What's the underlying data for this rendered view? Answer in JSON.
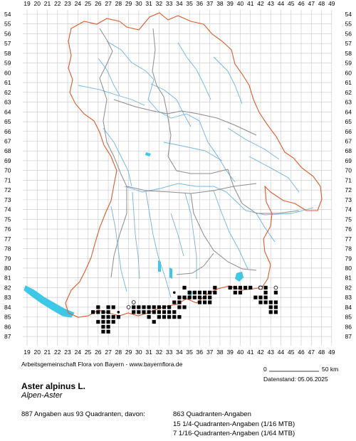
{
  "map": {
    "x_labels": [
      "19",
      "20",
      "21",
      "22",
      "23",
      "24",
      "25",
      "26",
      "27",
      "28",
      "29",
      "30",
      "31",
      "32",
      "33",
      "34",
      "35",
      "36",
      "37",
      "38",
      "39",
      "40",
      "41",
      "42",
      "43",
      "44",
      "45",
      "46",
      "47",
      "48",
      "49"
    ],
    "y_labels": [
      "54",
      "55",
      "56",
      "57",
      "58",
      "59",
      "60",
      "61",
      "62",
      "63",
      "64",
      "65",
      "66",
      "67",
      "68",
      "69",
      "70",
      "71",
      "72",
      "73",
      "74",
      "75",
      "76",
      "77",
      "78",
      "79",
      "80",
      "81",
      "82",
      "83",
      "84",
      "85",
      "86",
      "87"
    ],
    "colors": {
      "border_outer": "#e05a2b",
      "border_inner": "#8c8c8c",
      "rivers": "#6fb4e6",
      "lakes": "#3ec8e8",
      "grid": "#c8c8c8",
      "record": "#000000"
    },
    "records_filled": [
      [
        26,
        84
      ],
      [
        27,
        84
      ],
      [
        25.5,
        84.5
      ],
      [
        26,
        84.5
      ],
      [
        26.5,
        84.5
      ],
      [
        27,
        84.5
      ],
      [
        26.5,
        85
      ],
      [
        27,
        85
      ],
      [
        27.5,
        85
      ],
      [
        26,
        85.5
      ],
      [
        26.5,
        85.5
      ],
      [
        27,
        85.5
      ],
      [
        27.5,
        85.5
      ],
      [
        26.5,
        86
      ],
      [
        27,
        86
      ],
      [
        26.5,
        86.5
      ],
      [
        27,
        86.5
      ],
      [
        27.5,
        84
      ],
      [
        28,
        85
      ],
      [
        29.5,
        84
      ],
      [
        30,
        84
      ],
      [
        30.5,
        84
      ],
      [
        31,
        84
      ],
      [
        31.5,
        84
      ],
      [
        32,
        84
      ],
      [
        32.5,
        84
      ],
      [
        33,
        84
      ],
      [
        29.5,
        84.5
      ],
      [
        30,
        84.5
      ],
      [
        30.5,
        84.5
      ],
      [
        31,
        84.5
      ],
      [
        31.5,
        84.5
      ],
      [
        32,
        84.5
      ],
      [
        32.5,
        84.5
      ],
      [
        33,
        84.5
      ],
      [
        33.5,
        84.5
      ],
      [
        31,
        85
      ],
      [
        32,
        85
      ],
      [
        32.5,
        85
      ],
      [
        33,
        85
      ],
      [
        33.5,
        85
      ],
      [
        34,
        85
      ],
      [
        31.5,
        85.5
      ],
      [
        33.5,
        83.5
      ],
      [
        34,
        83.5
      ],
      [
        34,
        84
      ],
      [
        34.5,
        84
      ],
      [
        34,
        83
      ],
      [
        34.5,
        83
      ],
      [
        34.5,
        82
      ],
      [
        35,
        82.5
      ],
      [
        35.5,
        82.5
      ],
      [
        36,
        82.5
      ],
      [
        36.5,
        82.5
      ],
      [
        35.5,
        83
      ],
      [
        36,
        83
      ],
      [
        36.5,
        83
      ],
      [
        35,
        83
      ],
      [
        36,
        83.5
      ],
      [
        36.5,
        83.5
      ],
      [
        37,
        83.5
      ],
      [
        37,
        82.5
      ],
      [
        37,
        83
      ],
      [
        37.5,
        82
      ],
      [
        37.5,
        82.5
      ],
      [
        39,
        82
      ],
      [
        39.5,
        82
      ],
      [
        39.5,
        82.5
      ],
      [
        40,
        82
      ],
      [
        40,
        82.5
      ],
      [
        40.5,
        82
      ],
      [
        41,
        82
      ],
      [
        42,
        82
      ],
      [
        42.5,
        82
      ],
      [
        42.5,
        82.5
      ],
      [
        42.5,
        83
      ],
      [
        42,
        83
      ],
      [
        42,
        83.5
      ],
      [
        42.5,
        83.5
      ],
      [
        43,
        83.5
      ],
      [
        43.5,
        83.5
      ],
      [
        43,
        84
      ],
      [
        43.5,
        84
      ],
      [
        43.5,
        84.5
      ],
      [
        43,
        84.5
      ],
      [
        41.5,
        83
      ],
      [
        43.5,
        82.5
      ]
    ],
    "records_open": [
      [
        29.5,
        83.5
      ],
      [
        29,
        84
      ],
      [
        42,
        82
      ],
      [
        43.5,
        82
      ]
    ],
    "records_small": [
      [
        28,
        84.5
      ],
      [
        33.5,
        82.5
      ],
      [
        40,
        82
      ]
    ]
  },
  "credit": "Arbeitsgemeinschaft Flora von Bayern - www.bayernflora.de",
  "species": "Aster alpinus L.",
  "common_name": "Alpen-Aster",
  "datenstand": "Datenstand: 05.06.2025",
  "summary": "887 Angaben aus 93 Quadranten, davon:",
  "subcounts": [
    "863 Quadranten-Angaben",
    "15 1/4-Quadranten-Angaben (1/16 MTB)",
    "7 1/16-Quadranten-Angaben (1/64 MTB)"
  ],
  "scale": {
    "start": "0",
    "end": "50 km"
  }
}
